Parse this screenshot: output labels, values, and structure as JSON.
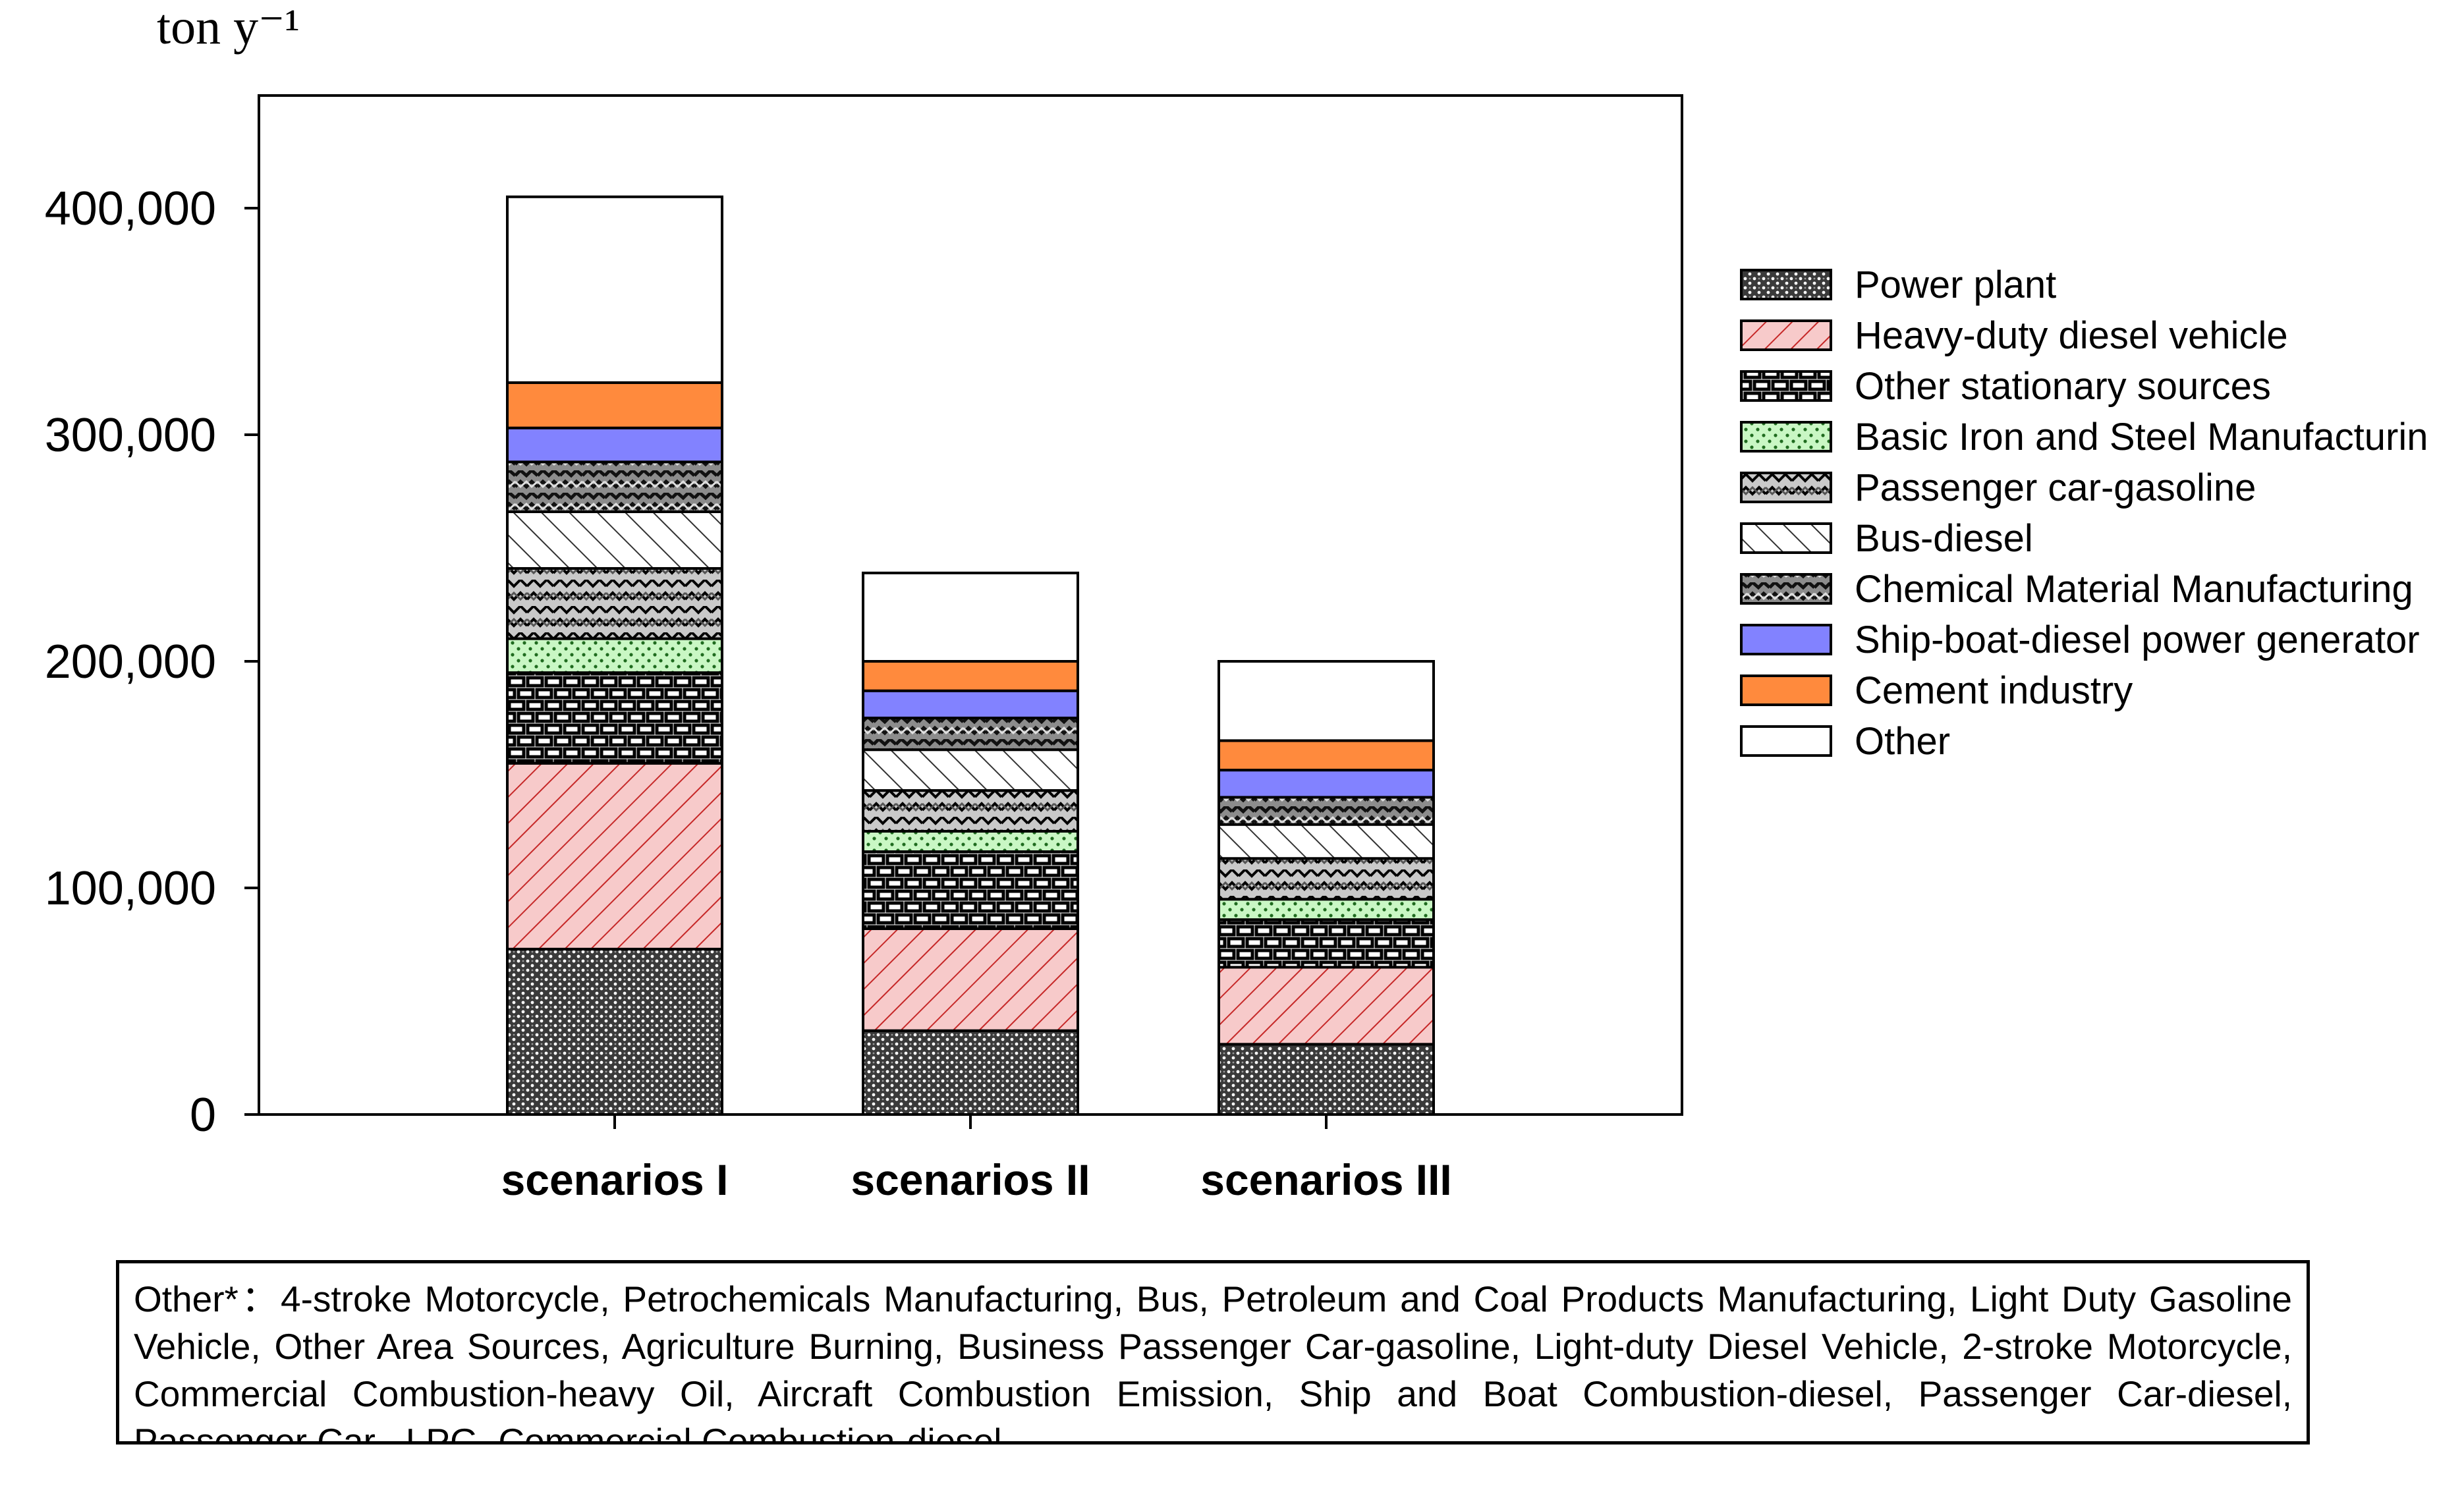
{
  "chart_data": {
    "type": "bar",
    "stacked": true,
    "ylabel": "ton y⁻¹",
    "ylim": [
      0,
      400000
    ],
    "yticks": [
      0,
      100000,
      200000,
      300000,
      400000
    ],
    "ytick_labels": [
      "0",
      "100,000",
      "200,000",
      "300,000",
      "400,000"
    ],
    "categories": [
      "scenarios I",
      "scenarios II",
      "scenarios III"
    ],
    "legend_position": "right",
    "series": [
      {
        "name": "Power plant",
        "pattern": "dots-dark",
        "color": "#4a4a4a",
        "values": [
          73000,
          37000,
          31000
        ]
      },
      {
        "name": "Heavy-duty diesel vehicle",
        "pattern": "diag-red",
        "color": "#f6c8c8",
        "values": [
          82000,
          45000,
          34000
        ]
      },
      {
        "name": "Other stationary sources",
        "pattern": "brick",
        "color": "#ffffff",
        "values": [
          40000,
          34000,
          21000
        ]
      },
      {
        "name": "Basic Iron and Steel Manufacturin",
        "pattern": "dots-green",
        "color": "#c9f7c4",
        "values": [
          15000,
          9000,
          9000
        ]
      },
      {
        "name": "Passenger car-gasoline",
        "pattern": "weave-grey",
        "color": "#c8c8c8",
        "values": [
          31000,
          18000,
          18000
        ]
      },
      {
        "name": "Bus-diesel",
        "pattern": "diag-light",
        "color": "#ffffff",
        "values": [
          25000,
          18000,
          15000
        ]
      },
      {
        "name": "Chemical Material Manufacturing",
        "pattern": "weave-dark",
        "color": "#8c8c8c",
        "values": [
          22000,
          14000,
          12000
        ]
      },
      {
        "name": "Ship-boat-diesel power generator",
        "pattern": "solid",
        "color": "#8282ff",
        "values": [
          15000,
          12000,
          12000
        ]
      },
      {
        "name": "Cement industry",
        "pattern": "solid",
        "color": "#ff8a3d",
        "values": [
          20000,
          13000,
          13000
        ]
      },
      {
        "name": "Other",
        "pattern": "solid",
        "color": "#ffffff",
        "values": [
          82000,
          39000,
          35000
        ]
      }
    ]
  },
  "footnote": "Other*：4-stroke Motorcycle, Petrochemicals Manufacturing, Bus, Petroleum and Coal Products Manufacturing, Light Duty Gasoline Vehicle, Other Area Sources, Agriculture Burning, Business Passenger Car-gasoline, Light-duty Diesel Vehicle, 2-stroke Motorcycle, Commercial Combustion-heavy Oil, Aircraft Combustion Emission, Ship and Boat Combustion-diesel, Passenger Car-diesel, Passenger Car –LPG, Commercial Combustion-diesel"
}
